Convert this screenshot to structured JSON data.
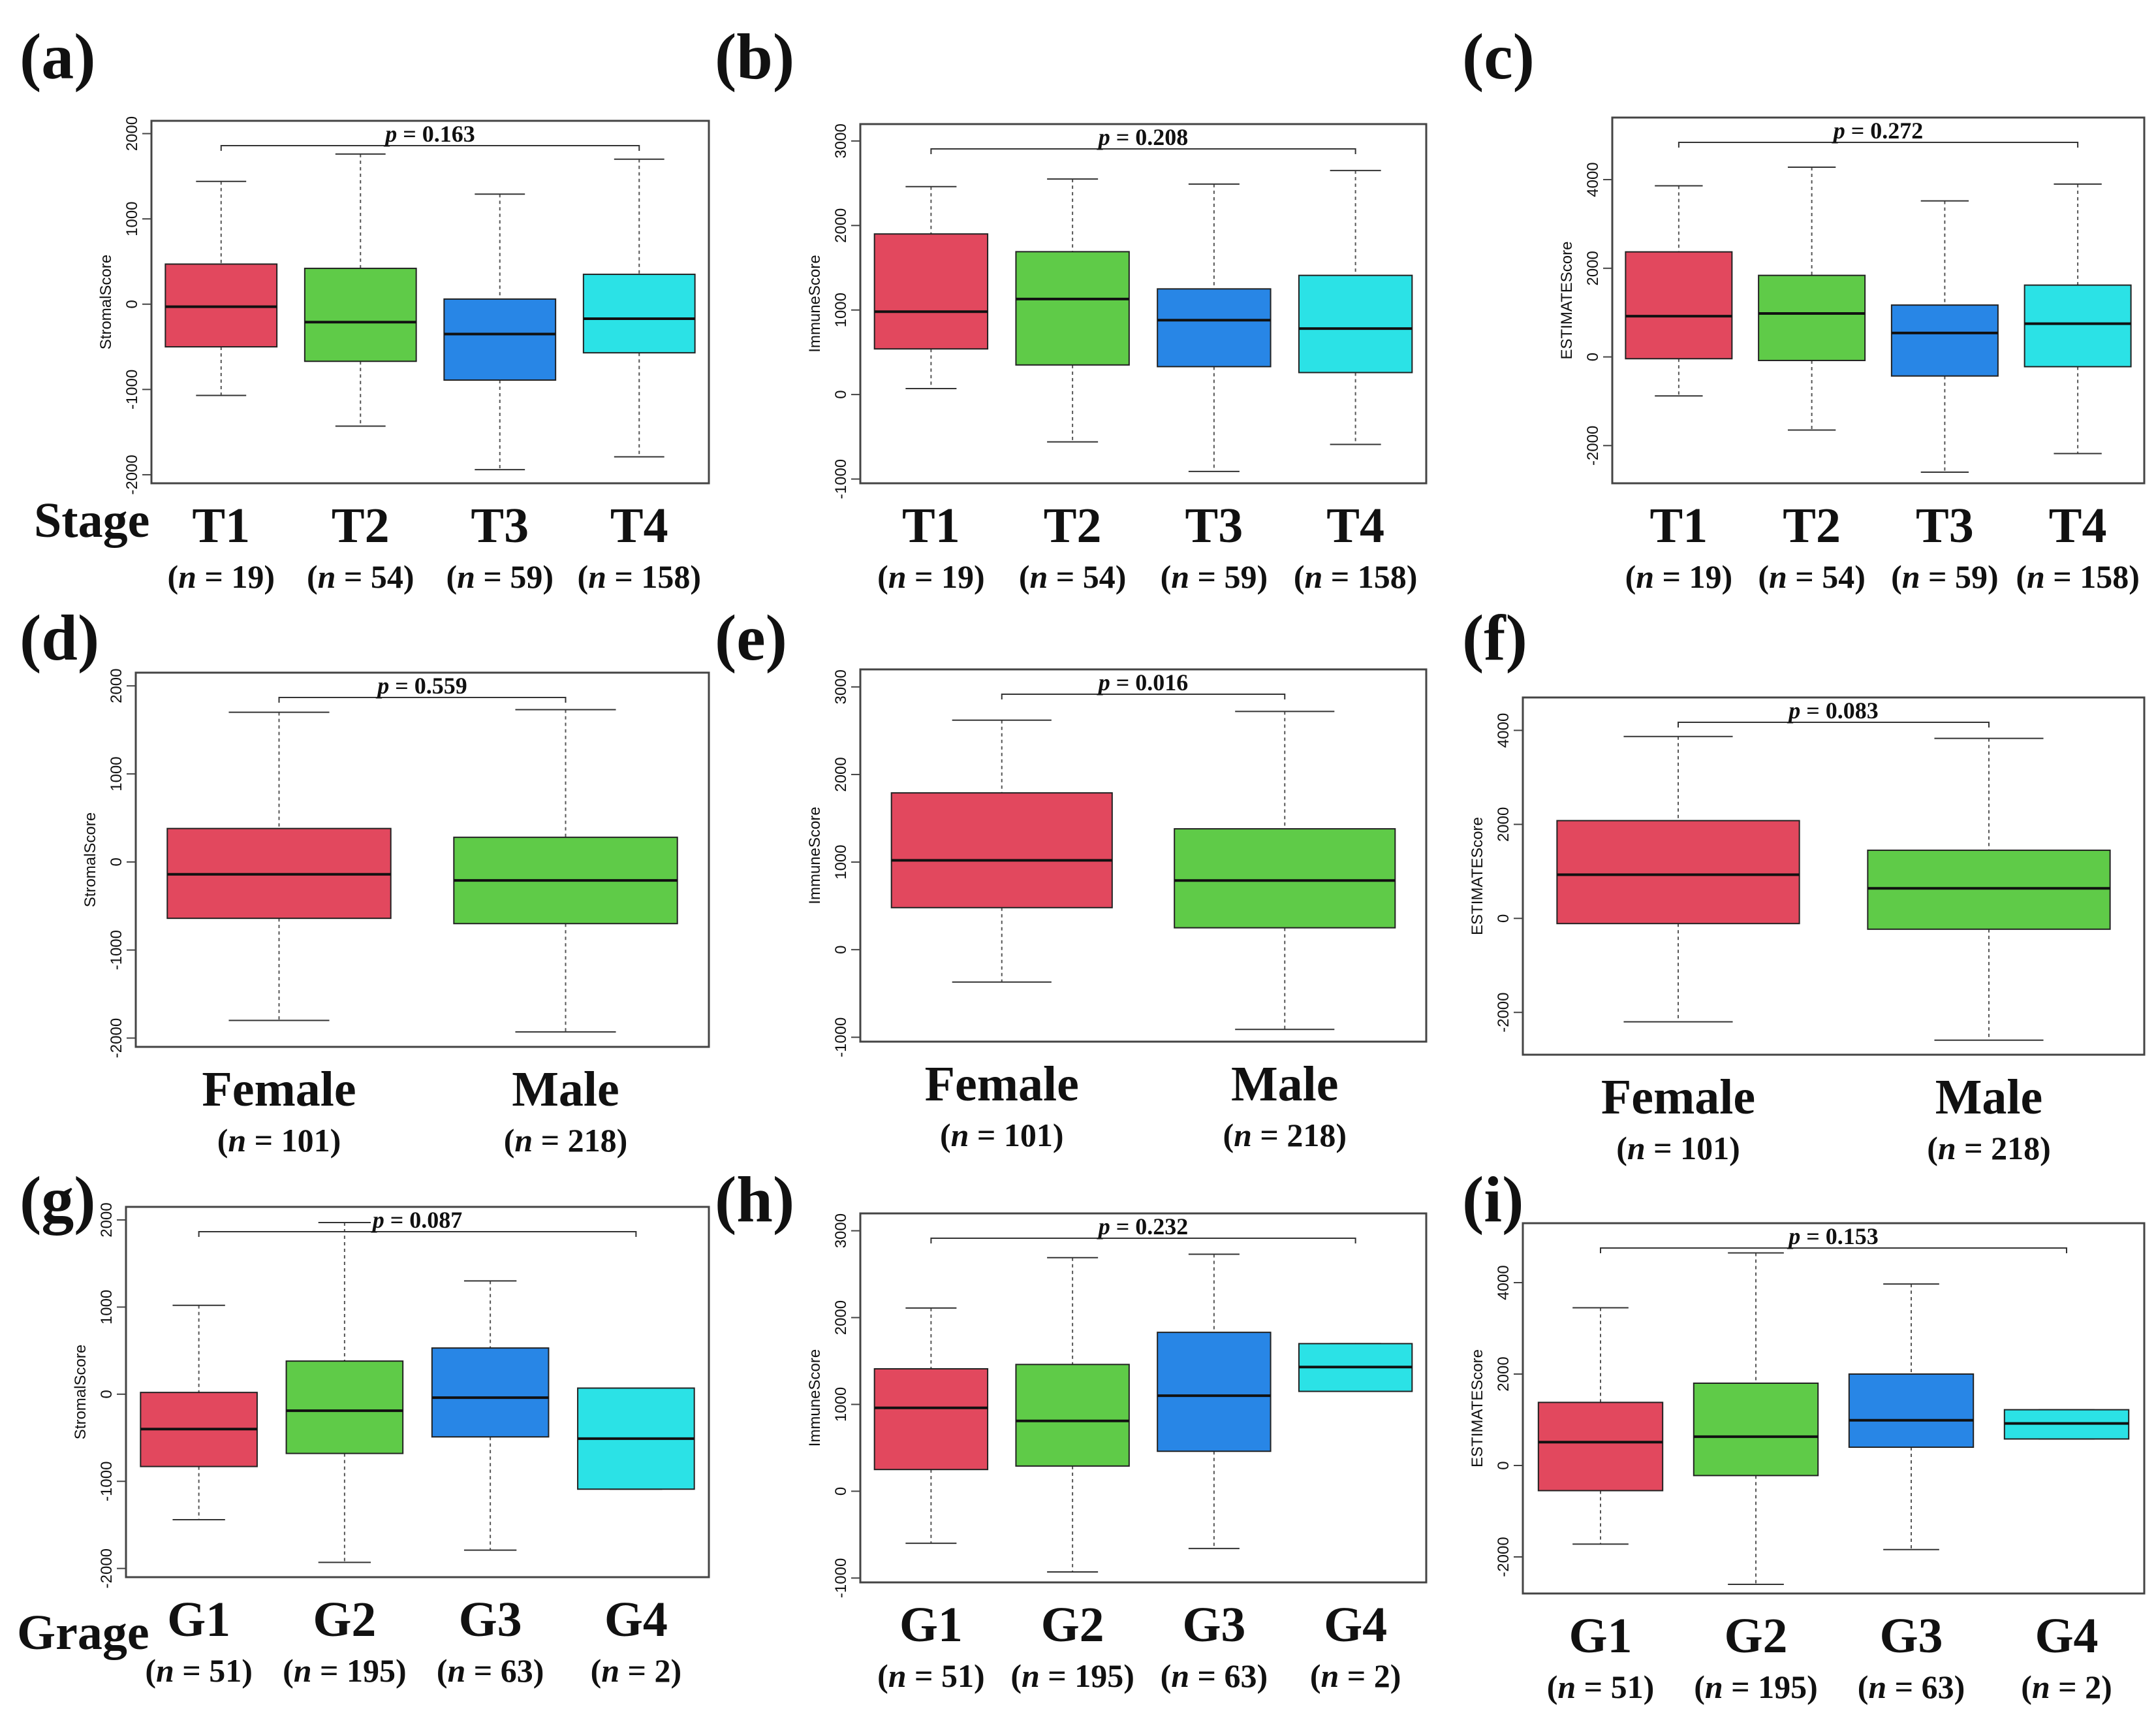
{
  "colors": {
    "red": "#E2485E",
    "green": "#5FCB48",
    "blue": "#2886E6",
    "cyan": "#2BE2E6",
    "axis": "#444444",
    "median": "#111111"
  },
  "row_labels": [
    "Stage",
    "Grage"
  ],
  "chart_data": [
    {
      "panel": "(a)",
      "type": "boxplot",
      "ylabel": "StromalScore",
      "ylim": [
        -2100,
        2150
      ],
      "yticks": [
        -2000,
        -1000,
        0,
        1000,
        2000
      ],
      "pvalue_label": "p",
      "pvalue_text": " = 0.163",
      "categories": [
        "T1",
        "T2",
        "T3",
        "T4"
      ],
      "n_labels": [
        "(n = 19)",
        "(n = 54)",
        "(n = 59)",
        "(n = 158)"
      ],
      "colors": [
        "red",
        "green",
        "blue",
        "cyan"
      ],
      "boxes": [
        {
          "wlo": -1070,
          "q1": -500,
          "med": -30,
          "q3": 470,
          "whi": 1440
        },
        {
          "wlo": -1430,
          "q1": -670,
          "med": -210,
          "q3": 420,
          "whi": 1760
        },
        {
          "wlo": -1940,
          "q1": -890,
          "med": -350,
          "q3": 60,
          "whi": 1290
        },
        {
          "wlo": -1790,
          "q1": -570,
          "med": -170,
          "q3": 350,
          "whi": 1700
        }
      ]
    },
    {
      "panel": "(b)",
      "type": "boxplot",
      "ylabel": "ImmuneScore",
      "ylim": [
        -1050,
        3200
      ],
      "yticks": [
        -1000,
        0,
        1000,
        2000,
        3000
      ],
      "pvalue_label": "p",
      "pvalue_text": " = 0.208",
      "categories": [
        "T1",
        "T2",
        "T3",
        "T4"
      ],
      "n_labels": [
        "(n = 19)",
        "(n = 54)",
        "(n = 59)",
        "(n = 158)"
      ],
      "colors": [
        "red",
        "green",
        "blue",
        "cyan"
      ],
      "boxes": [
        {
          "wlo": 70,
          "q1": 540,
          "med": 980,
          "q3": 1900,
          "whi": 2460
        },
        {
          "wlo": -560,
          "q1": 350,
          "med": 1130,
          "q3": 1690,
          "whi": 2550
        },
        {
          "wlo": -910,
          "q1": 330,
          "med": 880,
          "q3": 1250,
          "whi": 2490
        },
        {
          "wlo": -590,
          "q1": 260,
          "med": 780,
          "q3": 1410,
          "whi": 2650
        }
      ]
    },
    {
      "panel": "(c)",
      "type": "boxplot",
      "ylabel": "ESTIMATEScore",
      "ylim": [
        -2850,
        5400
      ],
      "yticks": [
        -2000,
        0,
        2000,
        4000
      ],
      "pvalue_label": "p",
      "pvalue_text": " = 0.272",
      "categories": [
        "T1",
        "T2",
        "T3",
        "T4"
      ],
      "n_labels": [
        "(n = 19)",
        "(n = 54)",
        "(n = 59)",
        "(n = 158)"
      ],
      "colors": [
        "red",
        "green",
        "blue",
        "cyan"
      ],
      "boxes": [
        {
          "wlo": -880,
          "q1": -40,
          "med": 920,
          "q3": 2370,
          "whi": 3860
        },
        {
          "wlo": -1650,
          "q1": -80,
          "med": 980,
          "q3": 1840,
          "whi": 4280
        },
        {
          "wlo": -2600,
          "q1": -430,
          "med": 540,
          "q3": 1170,
          "whi": 3520
        },
        {
          "wlo": -2180,
          "q1": -220,
          "med": 750,
          "q3": 1620,
          "whi": 3900
        }
      ]
    },
    {
      "panel": "(d)",
      "type": "boxplot",
      "ylabel": "StromalScore",
      "ylim": [
        -2100,
        2150
      ],
      "yticks": [
        -2000,
        -1000,
        0,
        1000,
        2000
      ],
      "pvalue_label": "p",
      "pvalue_text": " = 0.559",
      "categories": [
        "Female",
        "Male"
      ],
      "n_labels": [
        "(n = 101)",
        "(n = 218)"
      ],
      "colors": [
        "red",
        "green"
      ],
      "boxes": [
        {
          "wlo": -1800,
          "q1": -640,
          "med": -140,
          "q3": 380,
          "whi": 1700
        },
        {
          "wlo": -1930,
          "q1": -700,
          "med": -210,
          "q3": 280,
          "whi": 1730
        }
      ]
    },
    {
      "panel": "(e)",
      "type": "boxplot",
      "ylabel": "ImmuneScore",
      "ylim": [
        -1050,
        3200
      ],
      "yticks": [
        -1000,
        0,
        1000,
        2000,
        3000
      ],
      "pvalue_label": "p",
      "pvalue_text": " = 0.016",
      "categories": [
        "Female",
        "Male"
      ],
      "n_labels": [
        "(n = 101)",
        "(n = 218)"
      ],
      "colors": [
        "red",
        "green"
      ],
      "boxes": [
        {
          "wlo": -370,
          "q1": 480,
          "med": 1020,
          "q3": 1790,
          "whi": 2620
        },
        {
          "wlo": -910,
          "q1": 250,
          "med": 790,
          "q3": 1380,
          "whi": 2720
        }
      ]
    },
    {
      "panel": "(f)",
      "type": "boxplot",
      "ylabel": "ESTIMATEScore",
      "ylim": [
        -2900,
        4700
      ],
      "yticks": [
        -2000,
        0,
        2000,
        4000
      ],
      "pvalue_label": "p",
      "pvalue_text": " = 0.083",
      "categories": [
        "Female",
        "Male"
      ],
      "n_labels": [
        "(n = 101)",
        "(n = 218)"
      ],
      "colors": [
        "red",
        "green"
      ],
      "boxes": [
        {
          "wlo": -2200,
          "q1": -110,
          "med": 930,
          "q3": 2080,
          "whi": 3870
        },
        {
          "wlo": -2590,
          "q1": -230,
          "med": 640,
          "q3": 1450,
          "whi": 3830
        }
      ]
    },
    {
      "panel": "(g)",
      "type": "boxplot",
      "ylabel": "StromalScore",
      "ylim": [
        -2100,
        2150
      ],
      "yticks": [
        -2000,
        -1000,
        0,
        1000,
        2000
      ],
      "pvalue_label": "p",
      "pvalue_text": " = 0.087",
      "categories": [
        "G1",
        "G2",
        "G3",
        "G4"
      ],
      "n_labels": [
        "(n = 51)",
        "(n = 195)",
        "(n = 63)",
        "(n = 2)"
      ],
      "colors": [
        "red",
        "green",
        "blue",
        "cyan"
      ],
      "boxes": [
        {
          "wlo": -1440,
          "q1": -830,
          "med": -400,
          "q3": 20,
          "whi": 1020
        },
        {
          "wlo": -1930,
          "q1": -680,
          "med": -190,
          "q3": 380,
          "whi": 1970
        },
        {
          "wlo": -1790,
          "q1": -490,
          "med": -40,
          "q3": 530,
          "whi": 1300
        },
        {
          "wlo": -1090,
          "q1": -1090,
          "med": -510,
          "q3": 70,
          "whi": 70
        }
      ]
    },
    {
      "panel": "(h)",
      "type": "boxplot",
      "ylabel": "ImmuneScore",
      "ylim": [
        -1050,
        3200
      ],
      "yticks": [
        -1000,
        0,
        1000,
        2000,
        3000
      ],
      "pvalue_label": "p",
      "pvalue_text": " = 0.232",
      "categories": [
        "G1",
        "G2",
        "G3",
        "G4"
      ],
      "n_labels": [
        "(n = 51)",
        "(n = 195)",
        "(n = 63)",
        "(n = 2)"
      ],
      "colors": [
        "red",
        "green",
        "blue",
        "cyan"
      ],
      "boxes": [
        {
          "wlo": -600,
          "q1": 250,
          "med": 960,
          "q3": 1410,
          "whi": 2110
        },
        {
          "wlo": -930,
          "q1": 290,
          "med": 810,
          "q3": 1460,
          "whi": 2690
        },
        {
          "wlo": -660,
          "q1": 460,
          "med": 1100,
          "q3": 1830,
          "whi": 2730
        },
        {
          "wlo": 1150,
          "q1": 1150,
          "med": 1430,
          "q3": 1700,
          "whi": 1700
        }
      ]
    },
    {
      "panel": "(i)",
      "type": "boxplot",
      "ylabel": "ESTIMATEScore",
      "ylim": [
        -2800,
        5300
      ],
      "yticks": [
        -2000,
        0,
        2000,
        4000
      ],
      "pvalue_label": "p",
      "pvalue_text": " = 0.153",
      "categories": [
        "G1",
        "G2",
        "G3",
        "G4"
      ],
      "n_labels": [
        "(n = 51)",
        "(n = 195)",
        "(n = 63)",
        "(n = 2)"
      ],
      "colors": [
        "red",
        "green",
        "blue",
        "cyan"
      ],
      "boxes": [
        {
          "wlo": -1720,
          "q1": -550,
          "med": 510,
          "q3": 1380,
          "whi": 3450
        },
        {
          "wlo": -2600,
          "q1": -220,
          "med": 630,
          "q3": 1800,
          "whi": 4650
        },
        {
          "wlo": -1840,
          "q1": 400,
          "med": 990,
          "q3": 2000,
          "whi": 3970
        },
        {
          "wlo": 580,
          "q1": 580,
          "med": 920,
          "q3": 1220,
          "whi": 1220
        }
      ]
    }
  ]
}
